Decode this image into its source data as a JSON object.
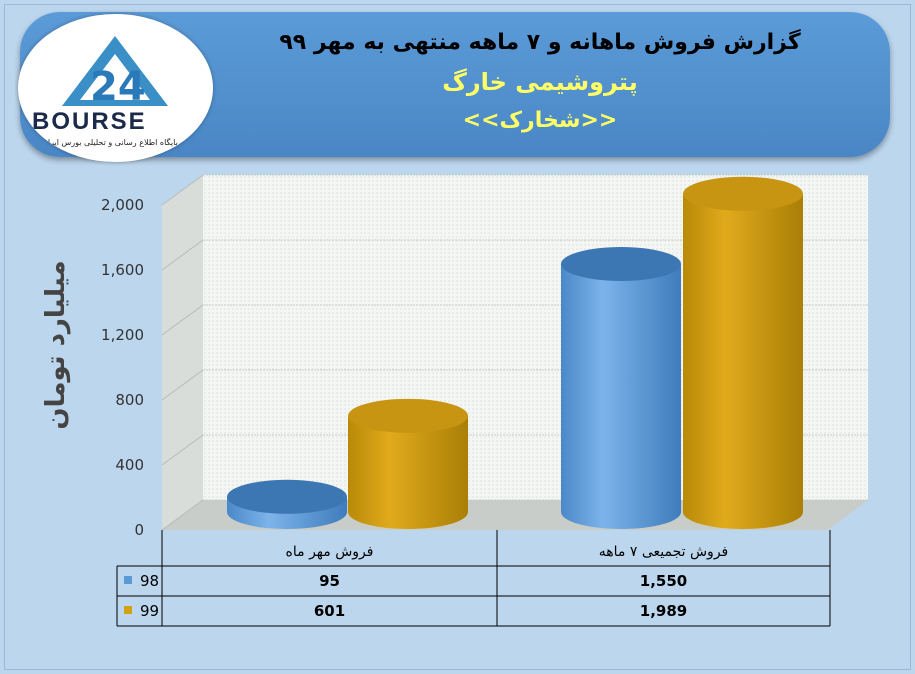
{
  "header": {
    "title": "گزارش فروش ماهانه و ۷ ماهه منتهی به مهر ۹۹",
    "company": "پتروشیمی خارگ",
    "symbol": "<<شخارک>>"
  },
  "logo": {
    "text": "BOURSE",
    "subtitle": "پایگاه اطلاع رسانی و تحلیلی بورس ایران"
  },
  "colors": {
    "series98": "#5b9bd5",
    "series99": "#d4a017"
  },
  "chart_data": {
    "type": "bar",
    "categories": [
      "فروش مهر  ماه",
      "فروش تجمیعی ۷ ماهه"
    ],
    "series": [
      {
        "name": "98",
        "values": [
          95,
          1550
        ]
      },
      {
        "name": "99",
        "values": [
          601,
          1989
        ]
      }
    ],
    "data_labels": [
      [
        "95",
        "1,550"
      ],
      [
        "601",
        "1,989"
      ]
    ],
    "ylabel": "میلیارد تومان",
    "ylim": [
      0,
      2000
    ],
    "yticks": [
      "0",
      "400",
      "800",
      "1,200",
      "1,600",
      "2,000"
    ],
    "yticks_values": [
      0,
      400,
      800,
      1200,
      1600,
      2000
    ],
    "grid": true,
    "legend": "data-table"
  }
}
